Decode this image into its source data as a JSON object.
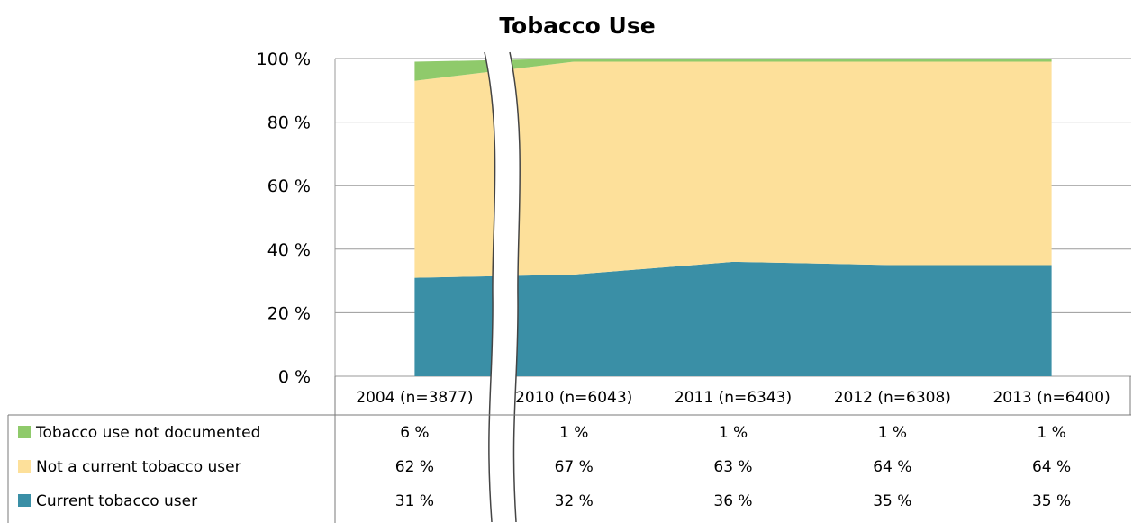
{
  "chart_data": {
    "type": "area",
    "title": "Tobacco Use",
    "stacked": true,
    "axis_break": "between first and second category",
    "ylim": [
      0,
      100
    ],
    "y_ticks": [
      "0 %",
      "20 %",
      "40 %",
      "60 %",
      "80 %",
      "100 %"
    ],
    "grid": true,
    "legend": "table-left",
    "categories": [
      "2004 (n=3877)",
      "2010 (n=6043)",
      "2011 (n=6343)",
      "2012 (n=6308)",
      "2013 (n=6400)"
    ],
    "series": [
      {
        "name": "Current tobacco user",
        "color": "#3a8fa6",
        "values": [
          31,
          32,
          36,
          35,
          35
        ],
        "labels": [
          "31 %",
          "32 %",
          "36 %",
          "35 %",
          "35 %"
        ]
      },
      {
        "name": "Not a current tobacco user",
        "color": "#fde09a",
        "values": [
          62,
          67,
          63,
          64,
          64
        ],
        "labels": [
          "62 %",
          "67 %",
          "63 %",
          "64 %",
          "64 %"
        ]
      },
      {
        "name": "Tobacco use not documented",
        "color": "#8fca6b",
        "values": [
          6,
          1,
          1,
          1,
          1
        ],
        "labels": [
          "6 %",
          "1 %",
          "1 %",
          "1 %",
          "1 %"
        ]
      }
    ]
  }
}
